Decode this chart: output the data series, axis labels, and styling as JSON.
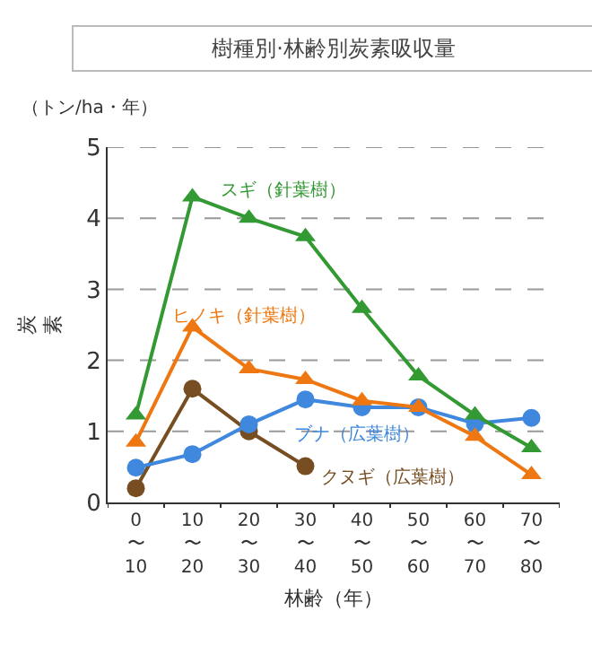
{
  "chart_data": {
    "type": "line",
    "title": "樹種別·林齢別炭素吸収量",
    "ylabel": "炭素",
    "xlabel": "林齢（年）",
    "annotations": [
      "（トン/ha・年）"
    ],
    "categories": [
      "0\n〜\n10",
      "10\n〜\n20",
      "20\n〜\n30",
      "30\n〜\n40",
      "40\n〜\n50",
      "50\n〜\n60",
      "60\n〜\n70",
      "70\n〜\n80"
    ],
    "series": [
      {
        "name": "スギ（針葉樹）",
        "color": "#339933",
        "marker": "triangle",
        "values": [
          1.23,
          4.3,
          4.0,
          3.74,
          2.73,
          1.78,
          1.23,
          0.77
        ]
      },
      {
        "name": "ヒノキ（針葉樹）",
        "color": "#ee7711",
        "marker": "triangle",
        "values": [
          0.85,
          2.47,
          1.88,
          1.73,
          1.43,
          1.34,
          0.93,
          0.39
        ]
      },
      {
        "name": "ブナ（広葉樹）",
        "color": "#3f88dd",
        "marker": "circle",
        "values": [
          0.49,
          0.68,
          1.1,
          1.45,
          1.34,
          1.34,
          1.11,
          1.19
        ]
      },
      {
        "name": "クヌギ（広葉樹）",
        "color": "#774d22",
        "marker": "circle",
        "values": [
          0.2,
          1.6,
          1.0,
          0.51,
          null,
          null,
          null,
          null
        ]
      }
    ],
    "ylim": [
      0,
      5
    ],
    "yticks": [
      0,
      1,
      2,
      3,
      4,
      5
    ],
    "grid": "y",
    "legend": false
  }
}
